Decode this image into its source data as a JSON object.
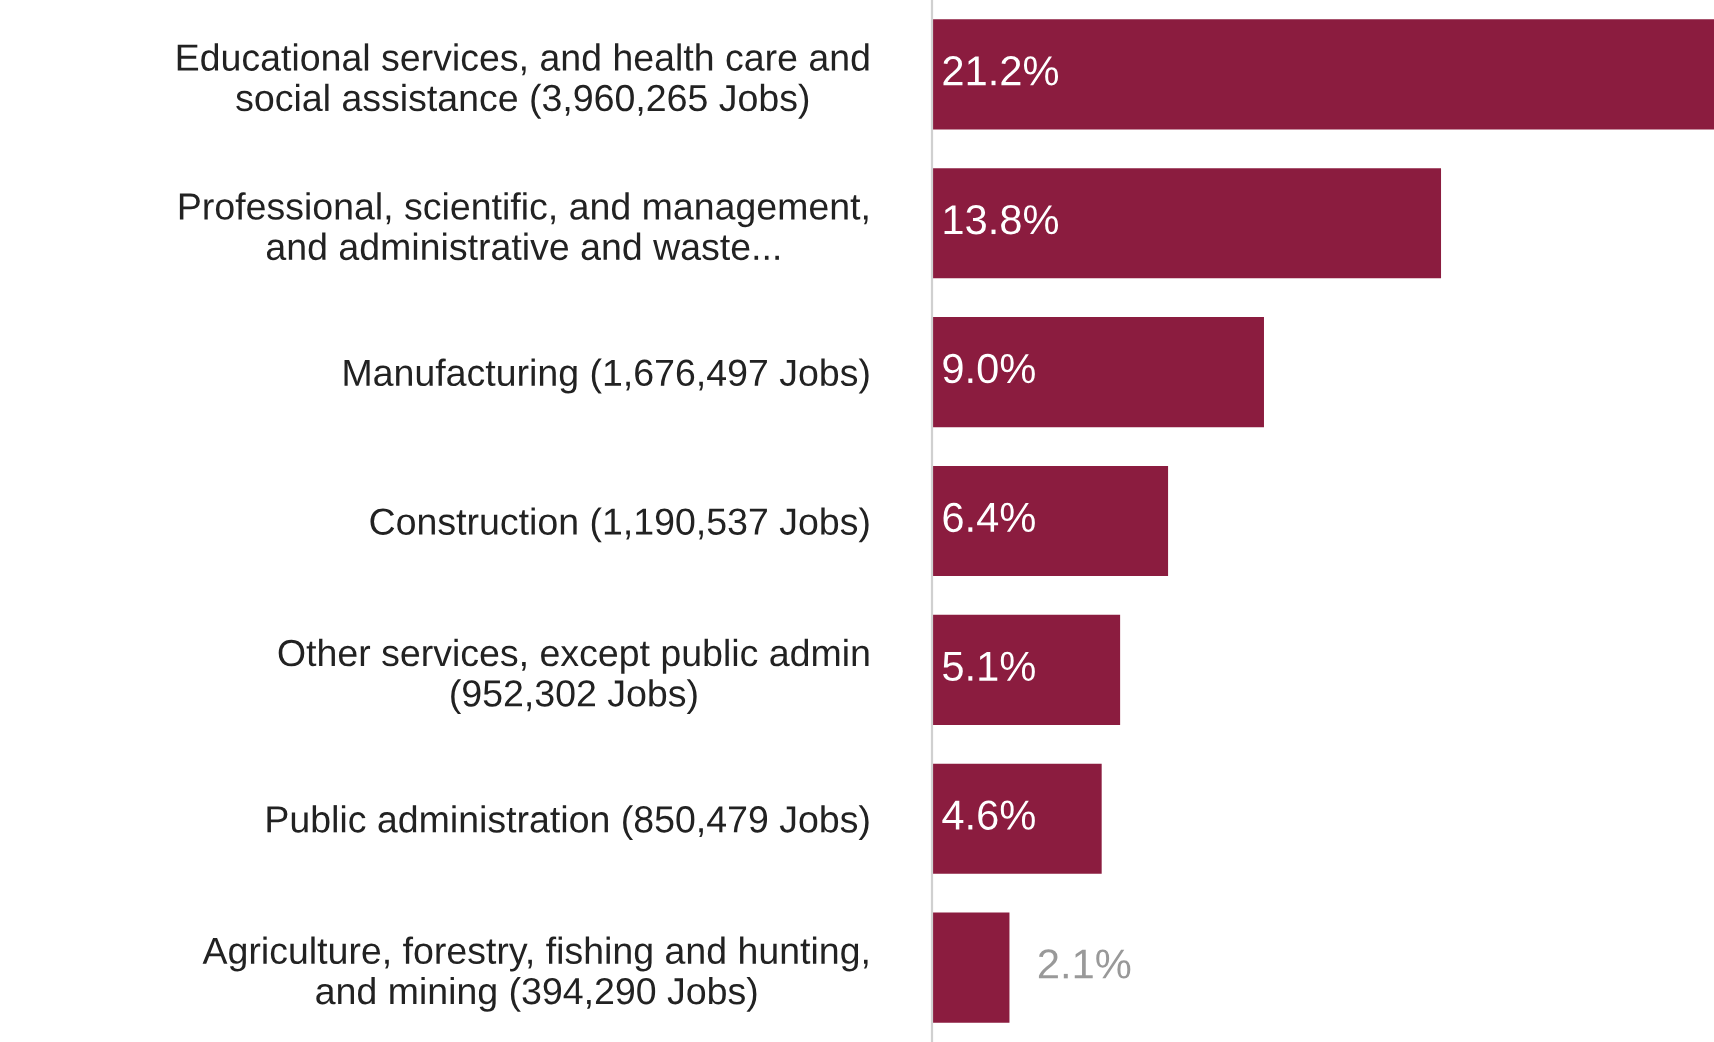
{
  "chart_data": {
    "type": "bar",
    "orientation": "horizontal",
    "categories": [
      "Educational services, and health care and\nsocial assistance (3,960,265 Jobs)",
      "Professional, scientific, and management,\nand administrative and waste...",
      "Manufacturing (1,676,497 Jobs)",
      "Construction (1,190,537 Jobs)",
      "Other services, except public admin\n(952,302 Jobs)",
      "Public administration (850,479 Jobs)",
      "Agriculture, forestry, fishing and hunting,\nand mining (394,290 Jobs)"
    ],
    "values": [
      21.2,
      13.8,
      9.0,
      6.4,
      5.1,
      4.6,
      2.1
    ],
    "value_labels": [
      "21.2%",
      "13.8%",
      "9.0%",
      "6.4%",
      "5.1%",
      "4.6%",
      "2.1%"
    ],
    "color": "#8b1c3f",
    "grid": false,
    "legend": false
  }
}
